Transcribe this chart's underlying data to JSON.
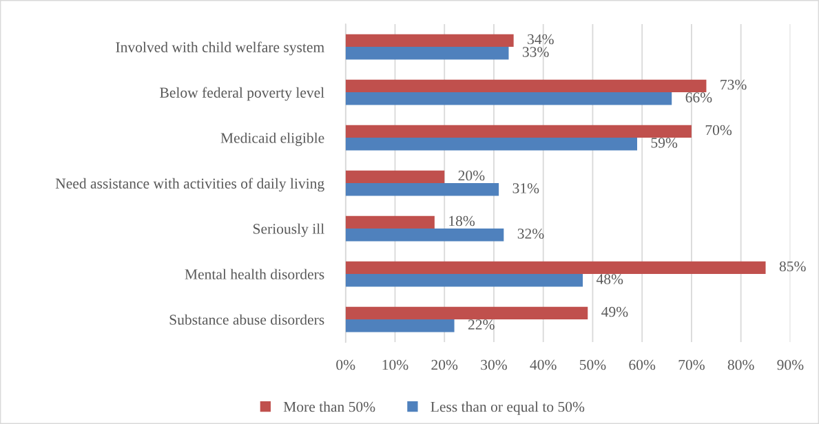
{
  "chart_data": {
    "type": "bar",
    "orientation": "horizontal",
    "categories": [
      "Involved with child welfare system",
      "Below federal poverty level",
      "Medicaid eligible",
      "Need assistance with activities of daily living",
      "Seriously ill",
      "Mental health disorders",
      "Substance abuse disorders"
    ],
    "series": [
      {
        "name": "More than 50%",
        "color": "#c0504d",
        "values": [
          34,
          73,
          70,
          20,
          18,
          85,
          49
        ],
        "value_labels": [
          "34%",
          "73%",
          "70%",
          "20%",
          "18%",
          "85%",
          "49%"
        ]
      },
      {
        "name": "Less than or equal to 50%",
        "color": "#4f81bd",
        "values": [
          33,
          66,
          59,
          31,
          32,
          48,
          22
        ],
        "value_labels": [
          "33%",
          "66%",
          "59%",
          "31%",
          "32%",
          "48%",
          "22%"
        ]
      }
    ],
    "xlim": [
      0,
      90
    ],
    "xticks": [
      {
        "value": 0,
        "label": "0%"
      },
      {
        "value": 10,
        "label": "10%"
      },
      {
        "value": 20,
        "label": "20%"
      },
      {
        "value": 30,
        "label": "30%"
      },
      {
        "value": 40,
        "label": "40%"
      },
      {
        "value": 50,
        "label": "50%"
      },
      {
        "value": 60,
        "label": "60%"
      },
      {
        "value": 70,
        "label": "70%"
      },
      {
        "value": 80,
        "label": "80%"
      },
      {
        "value": 90,
        "label": "90%"
      }
    ],
    "grid": "x",
    "legend": "bottom"
  }
}
